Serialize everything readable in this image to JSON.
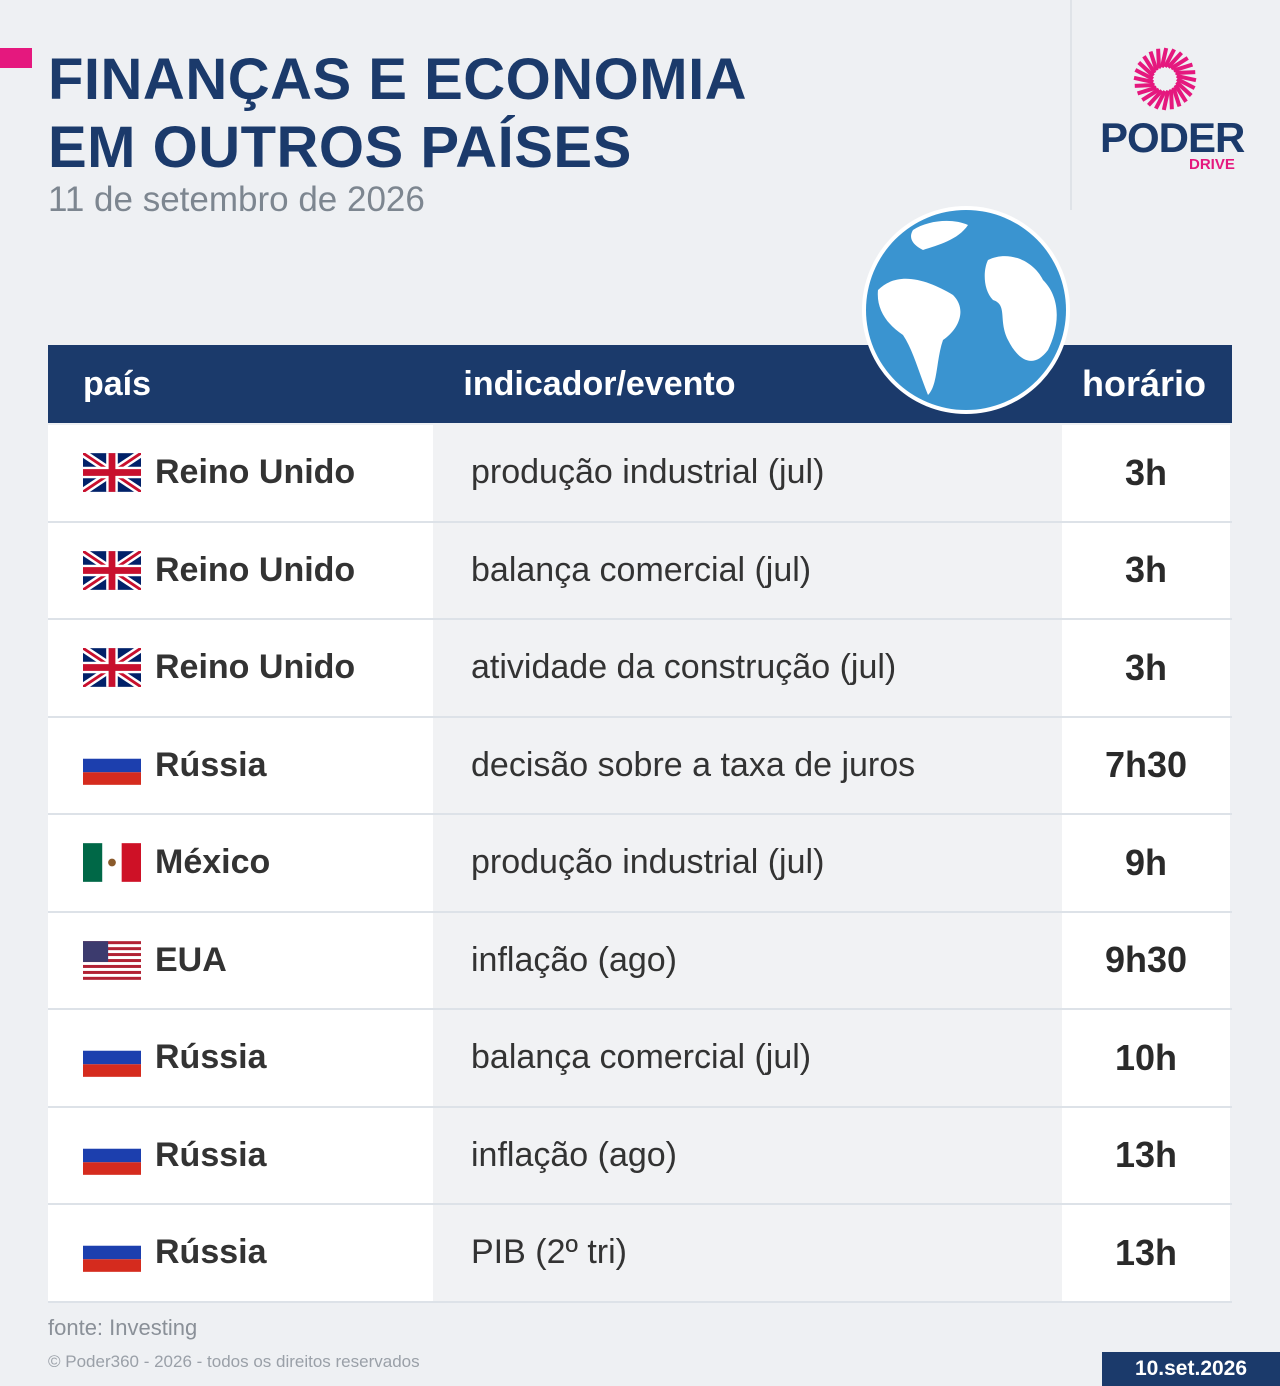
{
  "header": {
    "title_lines": [
      "FINANÇAS E ECONOMIA",
      "EM OUTROS PAÍSES"
    ],
    "date": "11 de setembro de 2026"
  },
  "logo": {
    "name": "PODER",
    "sub": "DRIVE"
  },
  "table": {
    "columns": [
      "país",
      "indicador/evento",
      "horário"
    ],
    "rows": [
      [
        "Reino Unido",
        "produção industrial (jul)",
        "3h"
      ],
      [
        "Reino Unido",
        "balança comercial (jul)",
        "3h"
      ],
      [
        "Reino Unido",
        "atividade da construção (jul)",
        "3h"
      ],
      [
        "Rússia",
        "decisão sobre a taxa de juros",
        "7h30"
      ],
      [
        "México",
        "produção industrial (jul)",
        "9h"
      ],
      [
        "EUA",
        "inflação (ago)",
        "9h30"
      ],
      [
        "Rússia",
        "balança comercial (jul)",
        "10h"
      ],
      [
        "Rússia",
        "inflação (ago)",
        "13h"
      ],
      [
        "Rússia",
        "PIB (2º tri)",
        "13h"
      ]
    ]
  },
  "footer": {
    "source": "fonte: Investing",
    "copyright": "© Poder360 - 2026 - todos os direitos reservados",
    "badge": "10.set.2026"
  }
}
